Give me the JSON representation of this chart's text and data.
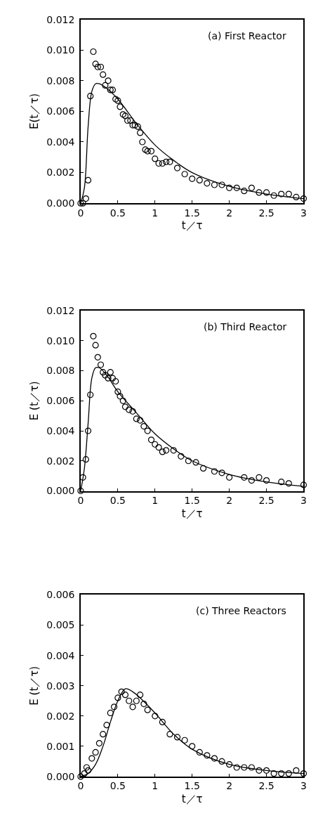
{
  "chart_data": [
    {
      "type": "scatter",
      "title": "(a) First Reactor",
      "xlabel": "t／τ",
      "ylabel": "E(t／τ)",
      "xlim": [
        0,
        3
      ],
      "xticks": [
        0,
        0.5,
        1,
        1.5,
        2,
        2.5,
        3
      ],
      "ylim": [
        0,
        0.012
      ],
      "yticks": [
        {
          "value": 0,
          "label": "0.000"
        },
        {
          "value": 0.002,
          "label": "0.002"
        },
        {
          "value": 0.004,
          "label": "0.004"
        },
        {
          "value": 0.006,
          "label": "0.006"
        },
        {
          "value": 0.008,
          "label": "0.008"
        },
        {
          "value": 0.01,
          "label": "0.010"
        },
        {
          "value": 0.012,
          "label": "0.012"
        }
      ],
      "series": [
        {
          "type": "scatter",
          "marker": "circle",
          "color": "#000000",
          "x": [
            0,
            0.03,
            0.07,
            0.1,
            0.13,
            0.17,
            0.2,
            0.23,
            0.27,
            0.3,
            0.33,
            0.37,
            0.4,
            0.43,
            0.47,
            0.5,
            0.53,
            0.57,
            0.6,
            0.63,
            0.67,
            0.7,
            0.73,
            0.77,
            0.8,
            0.83,
            0.87,
            0.9,
            0.95,
            1.0,
            1.05,
            1.1,
            1.15,
            1.2,
            1.3,
            1.4,
            1.5,
            1.6,
            1.7,
            1.8,
            1.9,
            2.0,
            2.1,
            2.2,
            2.3,
            2.4,
            2.5,
            2.6,
            2.7,
            2.8,
            2.9,
            3.0
          ],
          "values": [
            0,
            0,
            0.0003,
            0.0015,
            0.007,
            0.0099,
            0.0091,
            0.0089,
            0.0089,
            0.0084,
            0.0077,
            0.008,
            0.0074,
            0.0074,
            0.0068,
            0.0067,
            0.0063,
            0.0058,
            0.0057,
            0.0054,
            0.0054,
            0.0051,
            0.0051,
            0.005,
            0.0046,
            0.004,
            0.0035,
            0.0034,
            0.0034,
            0.0029,
            0.0026,
            0.0026,
            0.0027,
            0.0027,
            0.0023,
            0.0019,
            0.0016,
            0.0015,
            0.0013,
            0.0012,
            0.0012,
            0.001,
            0.001,
            0.0008,
            0.001,
            0.0007,
            0.0007,
            0.0005,
            0.0006,
            0.0006,
            0.0004,
            0.0003
          ]
        },
        {
          "type": "line",
          "line_style": "solid",
          "color": "#000000",
          "x": [
            0,
            0.05,
            0.1,
            0.15,
            0.2,
            0.25,
            0.35,
            0.5,
            0.75,
            1.0,
            1.25,
            1.5,
            2.0,
            2.5,
            3.0
          ],
          "values": [
            0,
            0.001,
            0.005,
            0.0073,
            0.0078,
            0.0078,
            0.0075,
            0.0068,
            0.0052,
            0.0038,
            0.0028,
            0.002,
            0.0011,
            0.0006,
            0.0003
          ]
        }
      ]
    },
    {
      "type": "scatter",
      "title": "(b) Third Reactor",
      "xlabel": "t／τ",
      "ylabel": "E (t／τ)",
      "xlim": [
        0,
        3
      ],
      "xticks": [
        0,
        0.5,
        1,
        1.5,
        2,
        2.5,
        3
      ],
      "ylim": [
        0,
        0.012
      ],
      "yticks": [
        {
          "value": 0,
          "label": "0.000"
        },
        {
          "value": 0.002,
          "label": "0.002"
        },
        {
          "value": 0.004,
          "label": "0.004"
        },
        {
          "value": 0.006,
          "label": "0.006"
        },
        {
          "value": 0.008,
          "label": "0.008"
        },
        {
          "value": 0.01,
          "label": "0.010"
        },
        {
          "value": 0.012,
          "label": "0.012"
        }
      ],
      "series": [
        {
          "type": "scatter",
          "marker": "circle",
          "color": "#000000",
          "x": [
            0,
            0.03,
            0.07,
            0.1,
            0.13,
            0.17,
            0.2,
            0.23,
            0.27,
            0.3,
            0.33,
            0.37,
            0.4,
            0.43,
            0.47,
            0.5,
            0.53,
            0.57,
            0.6,
            0.65,
            0.7,
            0.75,
            0.8,
            0.85,
            0.9,
            0.95,
            1.0,
            1.05,
            1.1,
            1.15,
            1.25,
            1.35,
            1.45,
            1.55,
            1.65,
            1.8,
            1.9,
            2.0,
            2.2,
            2.3,
            2.4,
            2.5,
            2.7,
            2.8,
            3.0
          ],
          "values": [
            0,
            0.0009,
            0.0021,
            0.004,
            0.0064,
            0.0103,
            0.0097,
            0.0089,
            0.0084,
            0.0079,
            0.0077,
            0.0075,
            0.0079,
            0.0075,
            0.0073,
            0.0066,
            0.0063,
            0.006,
            0.0056,
            0.0054,
            0.0053,
            0.0048,
            0.0047,
            0.0043,
            0.004,
            0.0034,
            0.0031,
            0.0029,
            0.0026,
            0.0027,
            0.0027,
            0.0023,
            0.002,
            0.0019,
            0.0015,
            0.0013,
            0.0012,
            0.0009,
            0.0009,
            0.0007,
            0.0009,
            0.0007,
            0.0006,
            0.0005,
            0.0004
          ]
        },
        {
          "type": "line",
          "line_style": "solid",
          "color": "#000000",
          "x": [
            0,
            0.05,
            0.1,
            0.15,
            0.2,
            0.25,
            0.35,
            0.5,
            0.75,
            1.0,
            1.25,
            1.5,
            2.0,
            2.5,
            3.0
          ],
          "values": [
            0,
            0.0015,
            0.0045,
            0.0075,
            0.0082,
            0.0082,
            0.0077,
            0.0066,
            0.0052,
            0.0038,
            0.0028,
            0.002,
            0.0011,
            0.0006,
            0.0003
          ]
        }
      ]
    },
    {
      "type": "scatter",
      "title": "(c) Three Reactors",
      "xlabel": "t／τ",
      "ylabel": "E (t／τ)",
      "xlim": [
        0,
        3
      ],
      "xticks": [
        0,
        0.5,
        1,
        1.5,
        2,
        2.5,
        3
      ],
      "ylim": [
        0,
        0.006
      ],
      "yticks": [
        {
          "value": 0,
          "label": "0.000"
        },
        {
          "value": 0.001,
          "label": "0.001"
        },
        {
          "value": 0.002,
          "label": "0.002"
        },
        {
          "value": 0.003,
          "label": "0.003"
        },
        {
          "value": 0.004,
          "label": "0.004"
        },
        {
          "value": 0.005,
          "label": "0.005"
        },
        {
          "value": 0.006,
          "label": "0.006"
        }
      ],
      "series": [
        {
          "type": "scatter",
          "marker": "circle",
          "color": "#000000",
          "x": [
            0,
            0.05,
            0.08,
            0.1,
            0.15,
            0.2,
            0.25,
            0.3,
            0.35,
            0.4,
            0.45,
            0.5,
            0.55,
            0.6,
            0.65,
            0.7,
            0.75,
            0.8,
            0.85,
            0.9,
            1.0,
            1.1,
            1.2,
            1.3,
            1.4,
            1.5,
            1.6,
            1.7,
            1.8,
            1.9,
            2.0,
            2.1,
            2.2,
            2.3,
            2.4,
            2.5,
            2.6,
            2.7,
            2.8,
            2.9,
            3.0
          ],
          "values": [
            0,
            0.0001,
            0.0003,
            0.0002,
            0.0006,
            0.0008,
            0.0011,
            0.0014,
            0.0017,
            0.0021,
            0.0023,
            0.0026,
            0.0028,
            0.0027,
            0.0025,
            0.0023,
            0.0025,
            0.0027,
            0.0024,
            0.0022,
            0.002,
            0.0018,
            0.0014,
            0.0013,
            0.0012,
            0.001,
            0.0008,
            0.0007,
            0.0006,
            0.0005,
            0.0004,
            0.0003,
            0.0003,
            0.0003,
            0.0002,
            0.0002,
            0.0001,
            0.0001,
            0.0001,
            0.0002,
            0.0001
          ]
        },
        {
          "type": "line",
          "line_style": "solid",
          "color": "#000000",
          "x": [
            0,
            0.1,
            0.2,
            0.3,
            0.4,
            0.5,
            0.6,
            0.7,
            0.8,
            1.0,
            1.25,
            1.5,
            2.0,
            2.5,
            3.0
          ],
          "values": [
            0,
            0.0001,
            0.0004,
            0.001,
            0.0018,
            0.0025,
            0.0029,
            0.0028,
            0.0026,
            0.0021,
            0.0014,
            0.0009,
            0.0004,
            0.0002,
            0.0001
          ]
        }
      ]
    }
  ]
}
